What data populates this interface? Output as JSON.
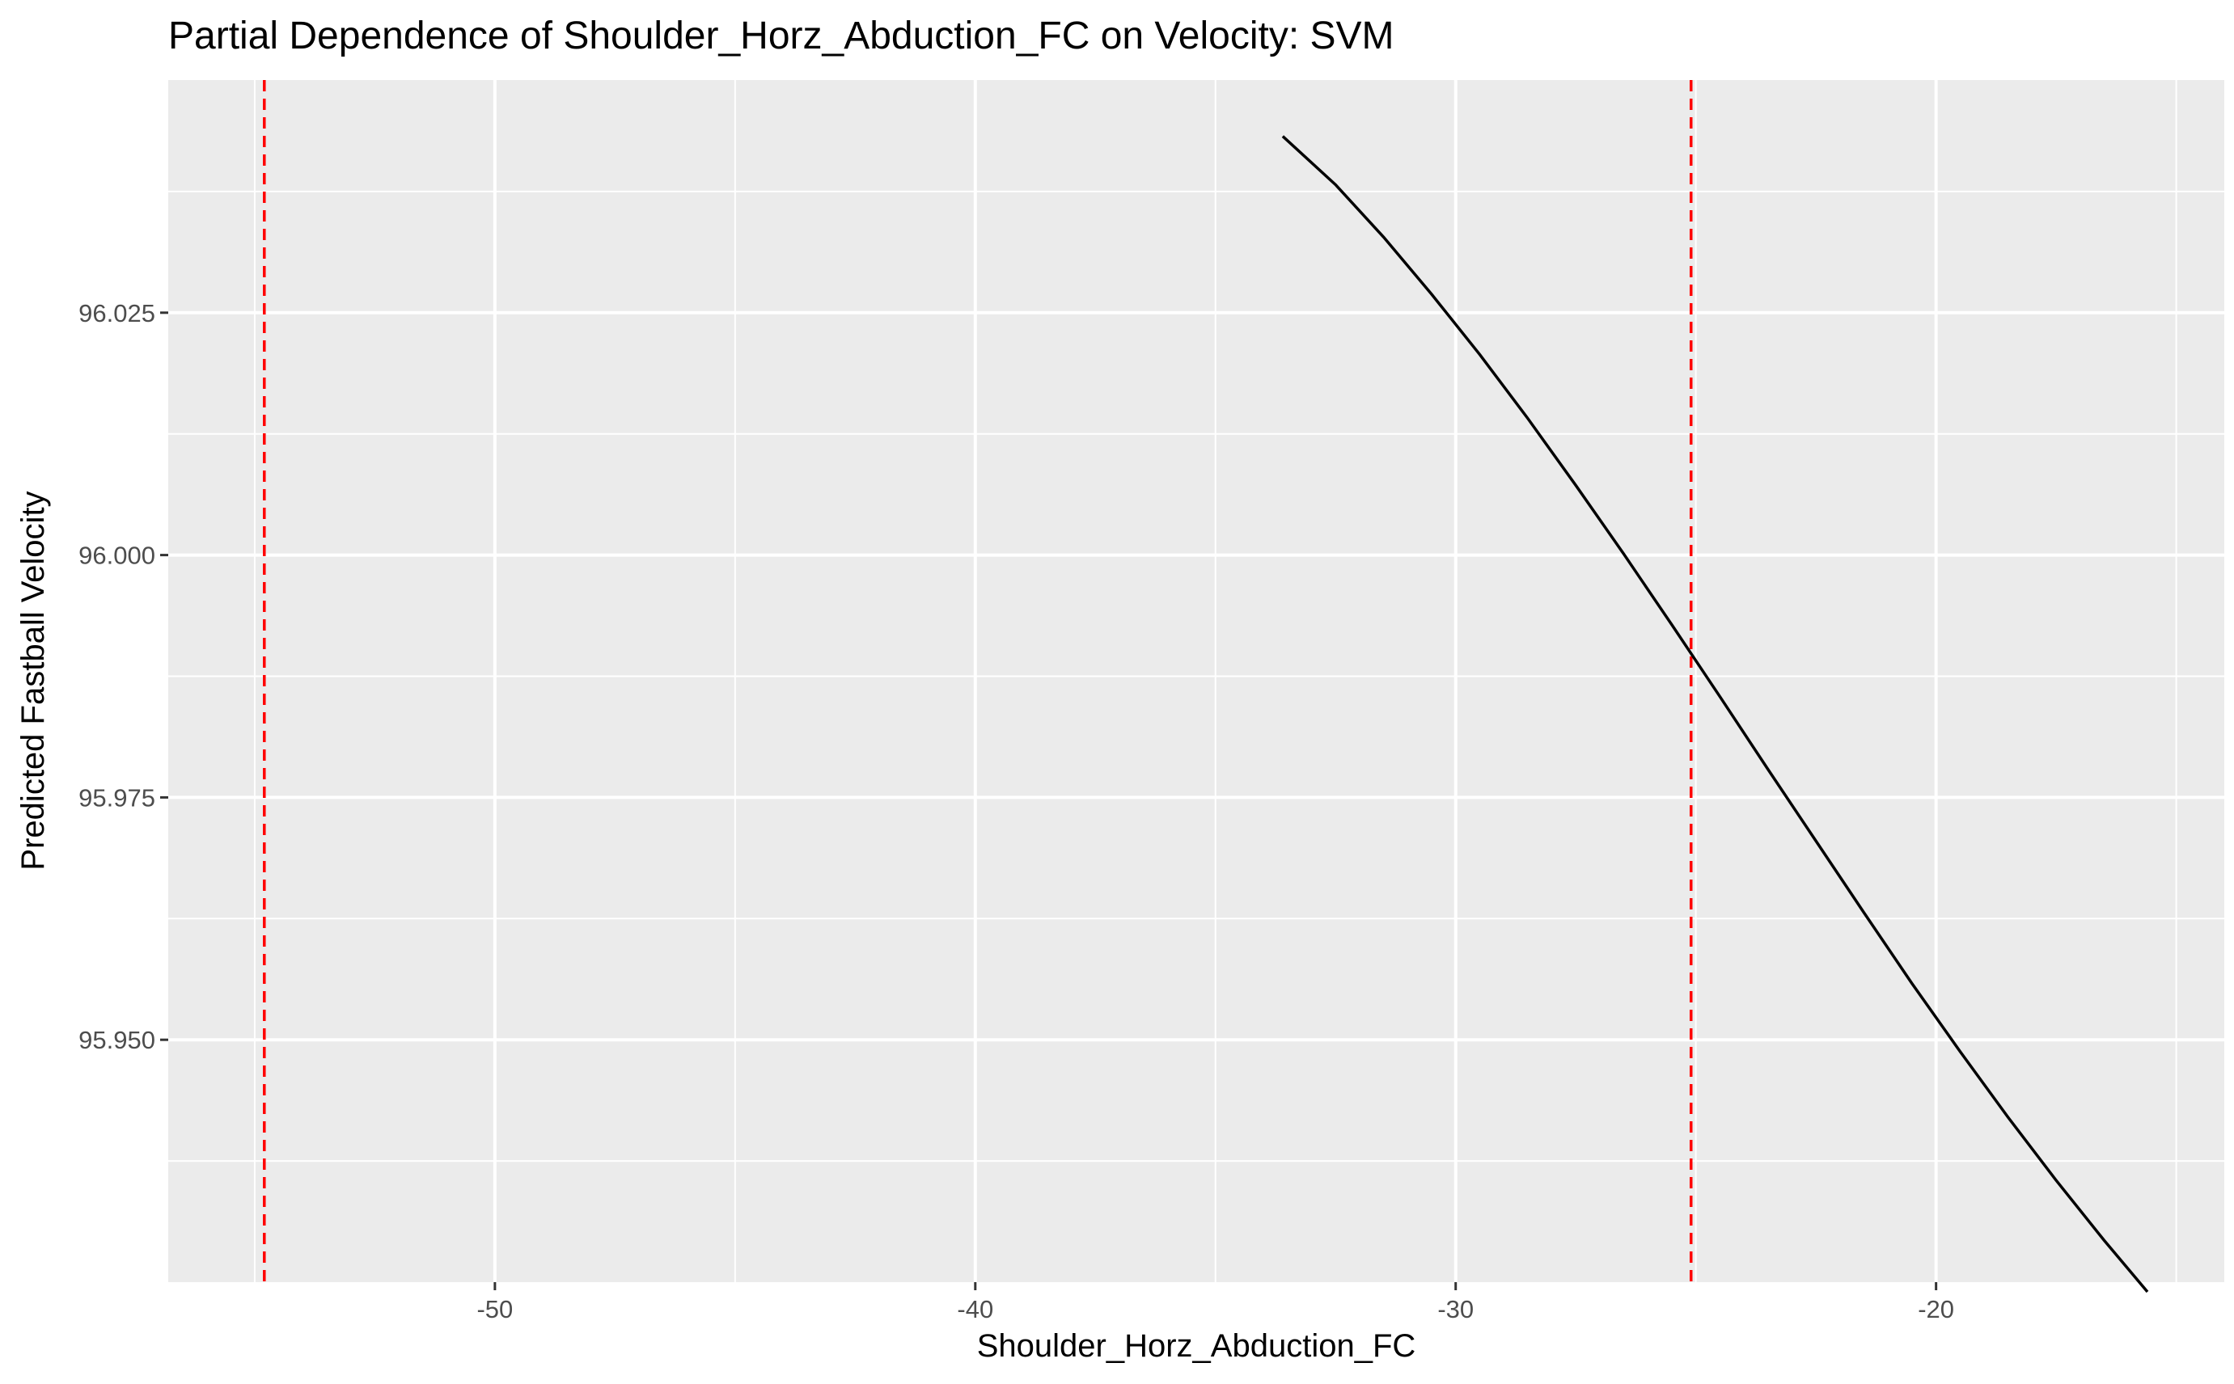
{
  "chart_data": {
    "type": "line",
    "title": "Partial Dependence of Shoulder_Horz_Abduction_FC on Velocity: SVM",
    "xlabel": "Shoulder_Horz_Abduction_FC",
    "ylabel": "Predicted Fastball Velocity",
    "xlim": [
      -56.8,
      -14.0
    ],
    "ylim": [
      95.925,
      96.049
    ],
    "x_ticks": [
      -50,
      -40,
      -30,
      -20
    ],
    "x_tick_labels": [
      "-50",
      "-40",
      "-30",
      "-20"
    ],
    "x_minor_ticks": [
      -55,
      -45,
      -35,
      -25,
      -15
    ],
    "y_ticks": [
      95.95,
      95.975,
      96.0,
      96.025
    ],
    "y_tick_labels": [
      "95.950",
      "95.975",
      "96.000",
      "96.025"
    ],
    "y_minor_ticks": [
      95.9375,
      95.9625,
      95.9875,
      96.0125,
      96.0375
    ],
    "grid": true,
    "colors": {
      "panel_background": "#ebebeb",
      "grid": "#ffffff",
      "line": "#000000",
      "reference_lines": "#ff0000"
    },
    "series": [
      {
        "x": [
          -33.6,
          -32.5,
          -31.5,
          -30.5,
          -29.5,
          -28.5,
          -27.5,
          -26.5,
          -25.5,
          -24.5,
          -23.5,
          -22.5,
          -21.5,
          -20.5,
          -19.5,
          -18.5,
          -17.5,
          -16.5,
          -15.6
        ],
        "y": [
          96.0432,
          96.0382,
          96.0328,
          96.0269,
          96.0207,
          96.0141,
          96.0072,
          96.0001,
          95.9928,
          95.9854,
          95.9779,
          95.9705,
          95.9631,
          95.9558,
          95.9488,
          95.942,
          95.9355,
          95.9293,
          95.924
        ]
      }
    ],
    "reference_lines": {
      "orientation": "vertical",
      "style": "dashed",
      "x": [
        -54.8,
        -25.1
      ]
    }
  }
}
